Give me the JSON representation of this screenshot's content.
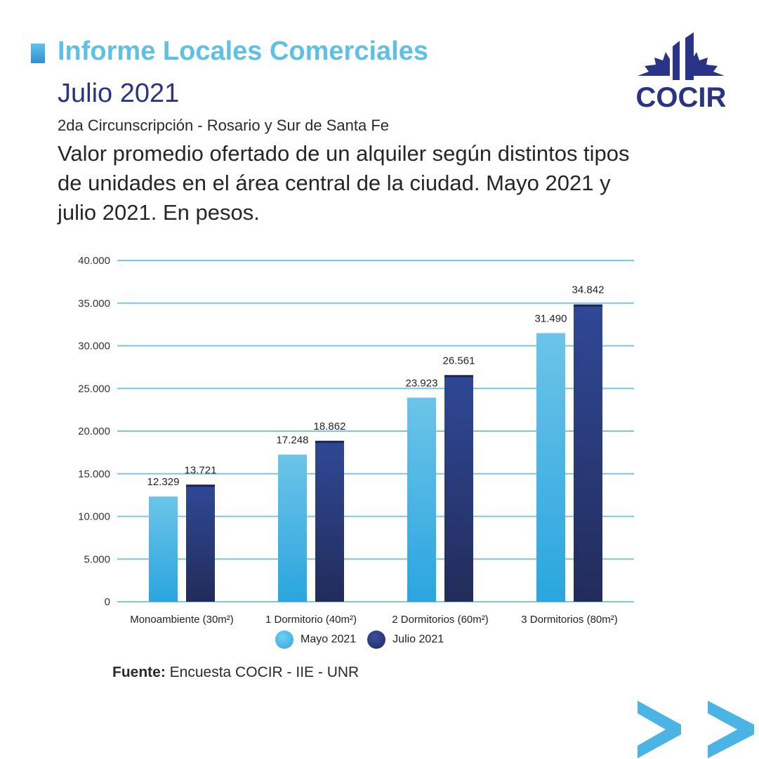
{
  "header": {
    "title": "Informe Locales Comerciales",
    "subtitle": "Julio 2021",
    "district": "2da Circunscripción - Rosario y Sur de Santa Fe",
    "chart_title": " Valor promedio ofertado de un alquiler según distintos tipos de unidades en el área central de la ciudad. Mayo 2021 y julio 2021. En pesos."
  },
  "logo": {
    "text": "COCIR",
    "icon": "cocir-logo-icon"
  },
  "footer": {
    "source_label": "Fuente:",
    "source_text": " Encuesta COCIR - IIE - UNR",
    "next_icon": "double-chevron-right-icon"
  },
  "colors": {
    "accent_light": "#5ec0e6",
    "accent_dark": "#2a3486",
    "grid": "#7cc6e0"
  },
  "chart_data": {
    "type": "bar",
    "categories": [
      "Monoambiente (30m²)",
      "1 Dormitorio (40m²)",
      "2 Dormitorios (60m²)",
      "3 Dormitorios (80m²)"
    ],
    "series": [
      {
        "name": "Mayo 2021",
        "values": [
          12329,
          17248,
          23923,
          31490
        ],
        "labels": [
          "12.329",
          "17.248",
          "23.923",
          "31.490"
        ],
        "color": "#4cb4e4"
      },
      {
        "name": "Julio 2021",
        "values": [
          13721,
          18862,
          26561,
          34842
        ],
        "labels": [
          "13.721",
          "18.862",
          "26.561",
          "34.842"
        ],
        "color": "#2a3a7e"
      }
    ],
    "ylim": [
      0,
      40000
    ],
    "yticks": [
      0,
      5000,
      10000,
      15000,
      20000,
      25000,
      30000,
      35000,
      40000
    ],
    "ytick_labels": [
      "0",
      "5.000",
      "10.000",
      "15.000",
      "20.000",
      "25.000",
      "30.000",
      "35.000",
      "40.000"
    ],
    "xlabel": "",
    "ylabel": "",
    "grid": true,
    "legend": "bottom"
  }
}
